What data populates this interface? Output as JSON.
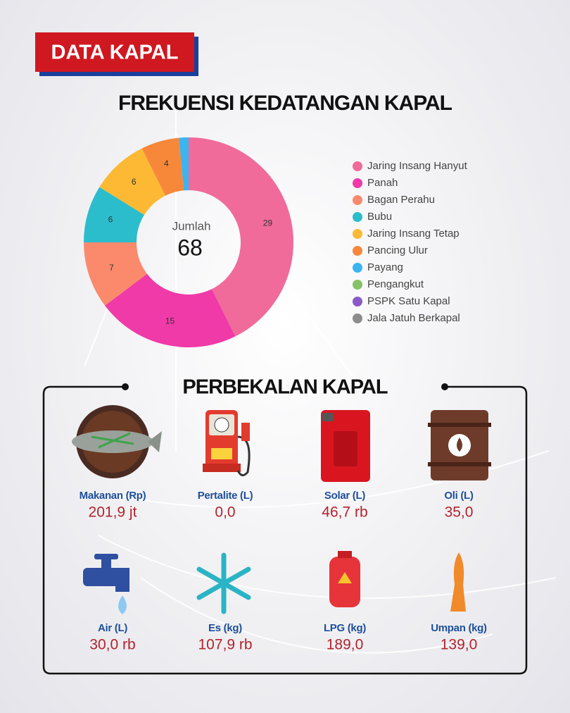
{
  "header": {
    "badge": "DATA KAPAL"
  },
  "chart_data": {
    "type": "donut",
    "title": "FREKUENSI KEDATANGAN KAPAL",
    "center_label": "Jumlah",
    "total": 68,
    "categories": [
      "Jaring Insang Hanyut",
      "Panah",
      "Bagan Perahu",
      "Bubu",
      "Jaring Insang Tetap",
      "Pancing Ulur",
      "Payang",
      "Pengangkut",
      "PSPK Satu Kapal",
      "Jala Jatuh Berkapal"
    ],
    "values": [
      29,
      15,
      7,
      6,
      6,
      4,
      1,
      0,
      0,
      0
    ],
    "colors": [
      "#f06a9a",
      "#f03aa8",
      "#fb8a6c",
      "#2bbdcc",
      "#fdb933",
      "#f7883a",
      "#3bb4ef",
      "#86c267",
      "#8a5bc6",
      "#8c8c8c"
    ],
    "legend": "right"
  },
  "supplies": {
    "title": "PERBEKALAN KAPAL",
    "items": [
      {
        "label": "Makanan (Rp)",
        "value": "201,9 jt"
      },
      {
        "label": "Pertalite (L)",
        "value": "0,0"
      },
      {
        "label": "Solar (L)",
        "value": "46,7 rb"
      },
      {
        "label": "Oli (L)",
        "value": "35,0"
      },
      {
        "label": "Air (L)",
        "value": "30,0 rb"
      },
      {
        "label": "Es (kg)",
        "value": "107,9 rb"
      },
      {
        "label": "LPG (kg)",
        "value": "189,0"
      },
      {
        "label": "Umpan (kg)",
        "value": "139,0"
      }
    ]
  }
}
